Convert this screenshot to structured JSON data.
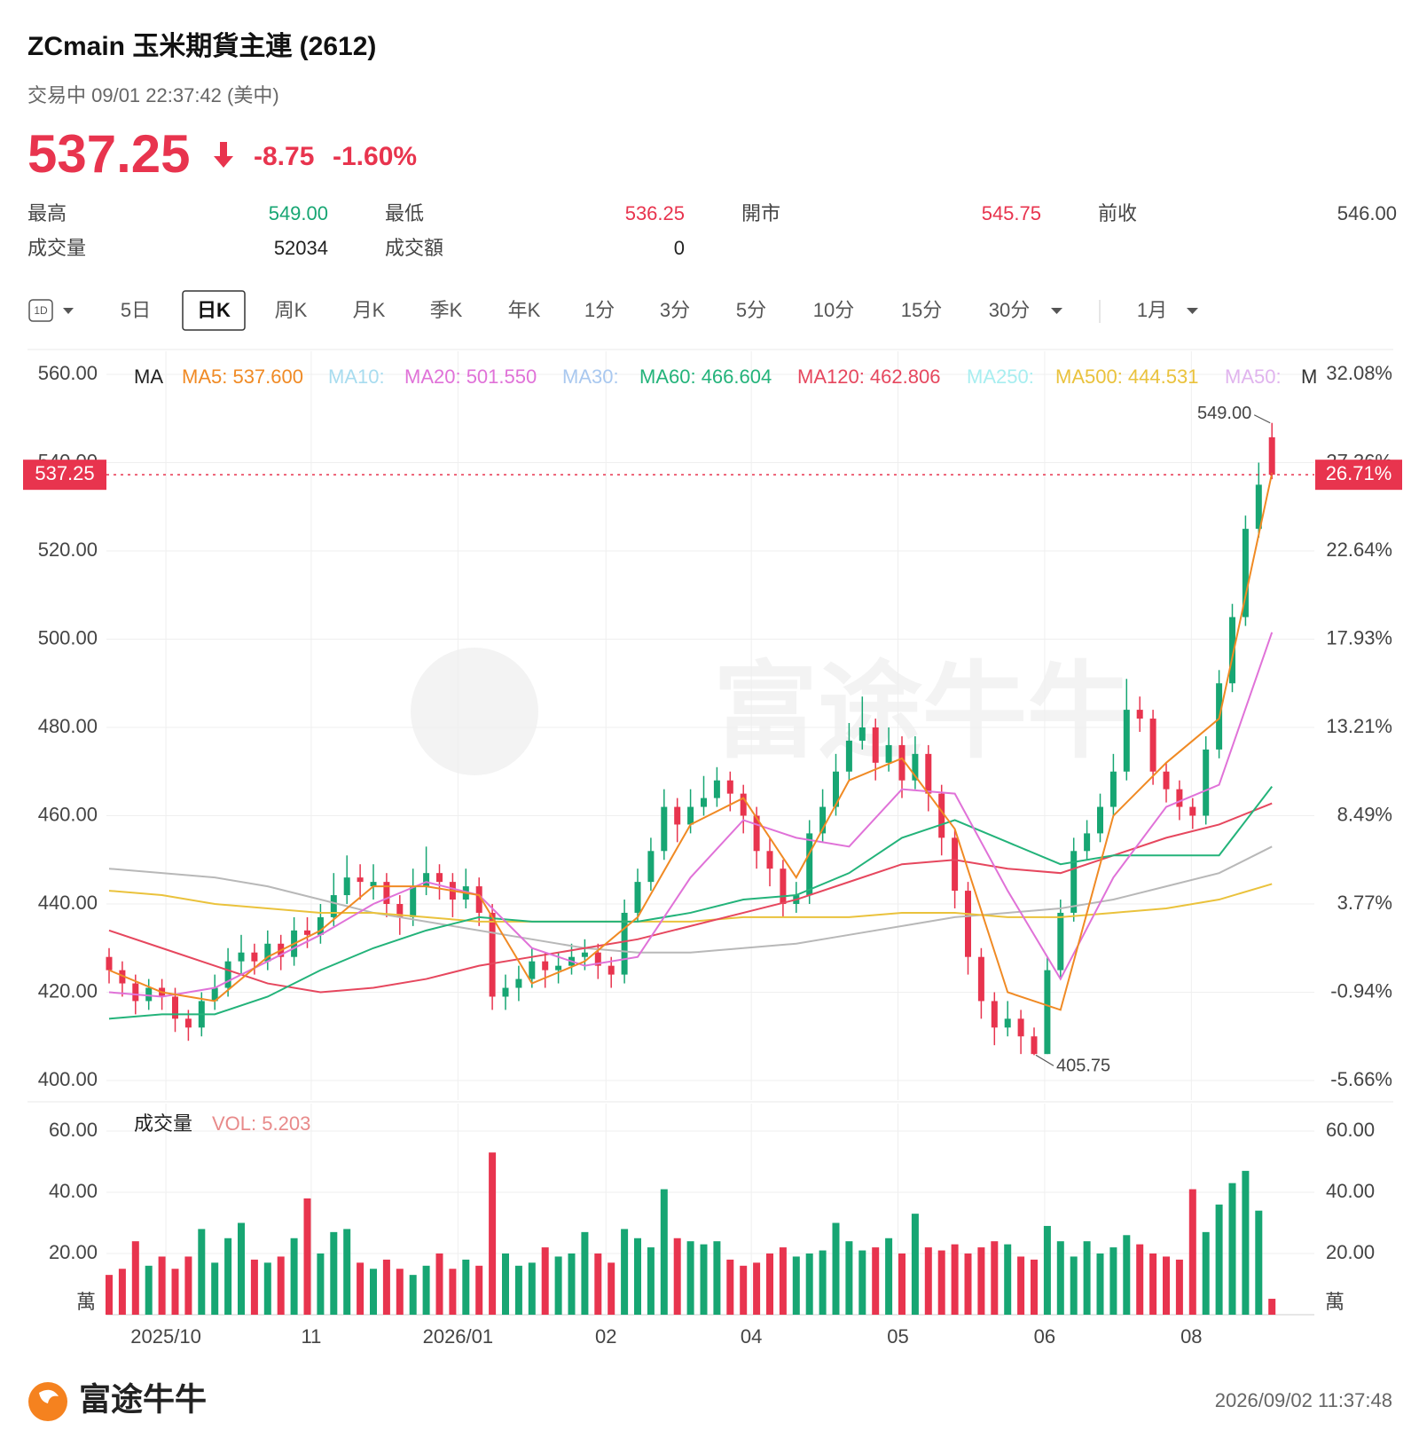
{
  "header": {
    "title": "ZCmain  玉米期貨主連 (2612)",
    "status": "交易中 09/01 22:37:42 (美中)",
    "price": "537.25",
    "change": "-8.75",
    "change_pct": "-1.60%"
  },
  "stats": [
    {
      "label": "最高",
      "value": "549.00",
      "color": "#17a673"
    },
    {
      "label": "最低",
      "value": "536.25",
      "color": "#e8344e"
    },
    {
      "label": "開市",
      "value": "545.75",
      "color": "#e8344e"
    },
    {
      "label": "前收",
      "value": "546.00",
      "color": "#444444"
    },
    {
      "label": "成交量",
      "value": "52034",
      "color": "#222222"
    },
    {
      "label": "成交額",
      "value": "0",
      "color": "#222222"
    }
  ],
  "tabs": {
    "interval": "1D",
    "items": [
      "5日",
      "日K",
      "周K",
      "月K",
      "季K",
      "年K",
      "1分",
      "3分",
      "5分",
      "10分",
      "15分",
      "30分",
      "1月"
    ],
    "active": 1
  },
  "chart_data": {
    "type": "candlestick",
    "grid": true,
    "up_color": "#17a673",
    "down_color": "#e8344e",
    "ylim": [
      400,
      560
    ],
    "yticks": [
      {
        "value": 400,
        "label": "400.00"
      },
      {
        "value": 420,
        "label": "420.00"
      },
      {
        "value": 440,
        "label": "440.00"
      },
      {
        "value": 460,
        "label": "460.00"
      },
      {
        "value": 480,
        "label": "480.00"
      },
      {
        "value": 500,
        "label": "500.00"
      },
      {
        "value": 520,
        "label": "520.00"
      },
      {
        "value": 540,
        "label": "540.00"
      },
      {
        "value": 560,
        "label": "560.00"
      }
    ],
    "y2lim": [
      -5.66,
      32.08
    ],
    "y2ticks": [
      {
        "value": -5.66,
        "label": "-5.66%"
      },
      {
        "value": -0.94,
        "label": "-0.94%"
      },
      {
        "value": 3.77,
        "label": "3.77%"
      },
      {
        "value": 8.49,
        "label": "8.49%"
      },
      {
        "value": 13.21,
        "label": "13.21%"
      },
      {
        "value": 17.93,
        "label": "17.93%"
      },
      {
        "value": 22.64,
        "label": "22.64%"
      },
      {
        "value": 27.36,
        "label": "27.36%"
      },
      {
        "value": 32.08,
        "label": "32.08%"
      }
    ],
    "xticks": [
      {
        "value": 4.3,
        "label": "2025/10"
      },
      {
        "value": 15.3,
        "label": "11"
      },
      {
        "value": 26.4,
        "label": "2026/01"
      },
      {
        "value": 37.6,
        "label": "02"
      },
      {
        "value": 48.6,
        "label": "04"
      },
      {
        "value": 59.7,
        "label": "05"
      },
      {
        "value": 70.8,
        "label": "06"
      },
      {
        "value": 81.9,
        "label": "08"
      }
    ],
    "legend_title": "MA",
    "legend": [
      {
        "label": "MA5: 537.600",
        "color": "#f08a24"
      },
      {
        "label": "MA10:",
        "color": "#a8dcef"
      },
      {
        "label": "MA20: 501.550",
        "color": "#e072d8"
      },
      {
        "label": "MA30:",
        "color": "#a9c8ef"
      },
      {
        "label": "MA60: 466.604",
        "color": "#23b37a"
      },
      {
        "label": "MA120: 462.806",
        "color": "#e6475e"
      },
      {
        "label": "MA250:",
        "color": "#a8eef0"
      },
      {
        "label": "MA500: 444.531",
        "color": "#eac23c"
      },
      {
        "label": "MA50:",
        "color": "#e0b4ee"
      },
      {
        "label": "M",
        "color": "#333333"
      }
    ],
    "candles": [
      [
        428,
        430,
        422,
        425
      ],
      [
        425,
        427,
        419,
        422
      ],
      [
        422,
        424,
        415,
        418
      ],
      [
        418,
        423,
        416,
        421
      ],
      [
        421,
        423,
        416,
        419
      ],
      [
        419,
        421,
        411,
        414
      ],
      [
        414,
        416,
        409,
        412
      ],
      [
        412,
        420,
        410,
        418
      ],
      [
        418,
        424,
        416,
        421
      ],
      [
        421,
        430,
        419,
        427
      ],
      [
        427,
        433,
        424,
        429
      ],
      [
        429,
        431,
        424,
        427
      ],
      [
        427,
        434,
        425,
        431
      ],
      [
        431,
        433,
        425,
        428
      ],
      [
        428,
        437,
        426,
        434
      ],
      [
        434,
        437,
        430,
        433
      ],
      [
        433,
        440,
        431,
        437
      ],
      [
        437,
        447,
        435,
        442
      ],
      [
        442,
        451,
        440,
        446
      ],
      [
        446,
        449,
        441,
        445
      ],
      [
        444,
        449,
        441,
        445
      ],
      [
        445,
        447,
        437,
        440
      ],
      [
        440,
        442,
        433,
        437
      ],
      [
        437,
        448,
        435,
        444
      ],
      [
        444,
        453,
        442,
        447
      ],
      [
        447,
        449,
        441,
        445
      ],
      [
        445,
        447,
        437,
        441
      ],
      [
        441,
        448,
        439,
        444
      ],
      [
        444,
        446,
        435,
        438
      ],
      [
        438,
        440,
        416,
        419
      ],
      [
        419,
        424,
        416,
        421
      ],
      [
        421,
        426,
        418,
        423
      ],
      [
        423,
        430,
        421,
        427
      ],
      [
        427,
        429,
        421,
        425
      ],
      [
        425,
        429,
        422,
        426
      ],
      [
        426,
        431,
        424,
        428
      ],
      [
        428,
        432,
        425,
        429
      ],
      [
        429,
        431,
        423,
        426
      ],
      [
        426,
        428,
        421,
        424
      ],
      [
        424,
        441,
        422,
        438
      ],
      [
        438,
        448,
        436,
        445
      ],
      [
        445,
        455,
        443,
        452
      ],
      [
        452,
        466,
        450,
        462
      ],
      [
        462,
        464,
        454,
        458
      ],
      [
        458,
        466,
        456,
        462
      ],
      [
        462,
        469,
        460,
        464
      ],
      [
        464,
        471,
        462,
        468
      ],
      [
        468,
        470,
        461,
        465
      ],
      [
        465,
        467,
        456,
        460
      ],
      [
        460,
        462,
        448,
        452
      ],
      [
        452,
        455,
        444,
        448
      ],
      [
        448,
        450,
        437,
        440
      ],
      [
        440,
        445,
        438,
        442
      ],
      [
        442,
        459,
        440,
        456
      ],
      [
        456,
        466,
        454,
        462
      ],
      [
        462,
        474,
        460,
        470
      ],
      [
        470,
        481,
        468,
        477
      ],
      [
        477,
        487,
        475,
        480
      ],
      [
        480,
        482,
        468,
        472
      ],
      [
        472,
        480,
        470,
        476
      ],
      [
        476,
        478,
        464,
        468
      ],
      [
        468,
        478,
        466,
        474
      ],
      [
        474,
        476,
        461,
        465
      ],
      [
        465,
        467,
        451,
        455
      ],
      [
        455,
        457,
        439,
        443
      ],
      [
        443,
        445,
        424,
        428
      ],
      [
        428,
        430,
        414,
        418
      ],
      [
        418,
        420,
        408,
        412
      ],
      [
        412,
        418,
        410,
        414
      ],
      [
        414,
        416,
        406,
        410
      ],
      [
        410,
        412,
        405.75,
        406
      ],
      [
        406,
        428,
        406,
        425
      ],
      [
        425,
        441,
        423,
        438
      ],
      [
        438,
        455,
        436,
        452
      ],
      [
        452,
        459,
        450,
        456
      ],
      [
        456,
        465,
        454,
        462
      ],
      [
        462,
        474,
        460,
        470
      ],
      [
        470,
        491,
        468,
        484
      ],
      [
        484,
        487,
        479,
        482
      ],
      [
        482,
        484,
        467,
        470
      ],
      [
        470,
        472,
        463,
        466
      ],
      [
        466,
        468,
        459,
        462
      ],
      [
        462,
        464,
        457,
        460
      ],
      [
        460,
        478,
        458,
        475
      ],
      [
        475,
        493,
        473,
        490
      ],
      [
        490,
        508,
        488,
        505
      ],
      [
        505,
        528,
        503,
        525
      ],
      [
        525,
        540,
        523,
        535
      ],
      [
        545.75,
        549,
        536.25,
        537.25
      ]
    ],
    "ma_x": [
      0,
      4,
      8,
      12,
      16,
      20,
      24,
      28,
      32,
      36,
      40,
      44,
      48,
      52,
      56,
      60,
      64,
      68,
      72,
      76,
      80,
      84,
      88
    ],
    "series": [
      {
        "color": "#b8b8b8",
        "values": [
          448,
          447,
          446,
          444,
          441,
          438,
          436,
          434,
          432,
          430,
          429,
          429,
          430,
          431,
          433,
          435,
          437,
          438,
          439,
          441,
          444,
          447,
          453
        ]
      },
      {
        "color": "#eac23c",
        "values": [
          443,
          442,
          440,
          439,
          438,
          438,
          437,
          436,
          436,
          436,
          436,
          436,
          437,
          437,
          437,
          438,
          438,
          437,
          437,
          438,
          439,
          441,
          444.531
        ]
      },
      {
        "color": "#e6475e",
        "values": [
          434,
          430,
          426,
          422,
          420,
          421,
          423,
          426,
          428,
          430,
          432,
          435,
          438,
          441,
          445,
          449,
          450,
          448,
          447,
          451,
          455,
          458,
          462.806
        ]
      },
      {
        "color": "#23b37a",
        "values": [
          414,
          415,
          415,
          419,
          425,
          430,
          434,
          437,
          436,
          436,
          436,
          438,
          441,
          442,
          447,
          455,
          459,
          454,
          449,
          451,
          451,
          451,
          466.604
        ]
      },
      {
        "color": "#e072d8",
        "values": [
          420,
          419,
          421,
          427,
          433,
          440,
          445,
          442,
          430,
          426,
          428,
          446,
          459,
          455,
          453,
          466,
          465,
          443,
          423,
          446,
          462,
          467,
          501.55
        ]
      },
      {
        "color": "#f08a24",
        "values": [
          425,
          420,
          418,
          428,
          434,
          444,
          444,
          442,
          422,
          427,
          437,
          458,
          464,
          446,
          468,
          473,
          457,
          420,
          416,
          460,
          472,
          482,
          537.6
        ]
      }
    ],
    "last": {
      "value": 537.25,
      "label": "537.25",
      "pct_label": "26.71%"
    },
    "annotations": [
      {
        "label": "549.00",
        "value": 549,
        "index": 88,
        "side": "left"
      },
      {
        "label": "405.75",
        "value": 405.75,
        "index": 70,
        "side": "right"
      }
    ],
    "volume": {
      "title": "成交量",
      "legend": "VOL: 5.203",
      "unit": "萬",
      "ylim": [
        0,
        60
      ],
      "yticks": [
        {
          "value": 20,
          "label": "20.00"
        },
        {
          "value": 40,
          "label": "40.00"
        },
        {
          "value": 60,
          "label": "60.00"
        }
      ],
      "values": [
        13,
        15,
        24,
        16,
        19,
        15,
        19,
        28,
        17,
        25,
        30,
        18,
        17,
        19,
        25,
        38,
        20,
        27,
        28,
        17,
        15,
        18,
        15,
        13,
        16,
        20,
        15,
        18,
        16,
        53,
        20,
        16,
        17,
        22,
        19,
        20,
        27,
        20,
        17,
        28,
        25,
        22,
        41,
        25,
        24,
        23,
        24,
        18,
        16,
        17,
        20,
        22,
        19,
        20,
        21,
        30,
        24,
        21,
        22,
        25,
        20,
        33,
        22,
        21,
        23,
        20,
        22,
        24,
        23,
        19,
        18,
        29,
        24,
        19,
        24,
        20,
        22,
        26,
        23,
        20,
        19,
        18,
        41,
        27,
        36,
        43,
        47,
        34,
        5.203
      ]
    }
  },
  "footer": {
    "brand": "富途牛牛",
    "timestamp": "2026/09/02 11:37:48",
    "watermark": "富途牛牛"
  }
}
